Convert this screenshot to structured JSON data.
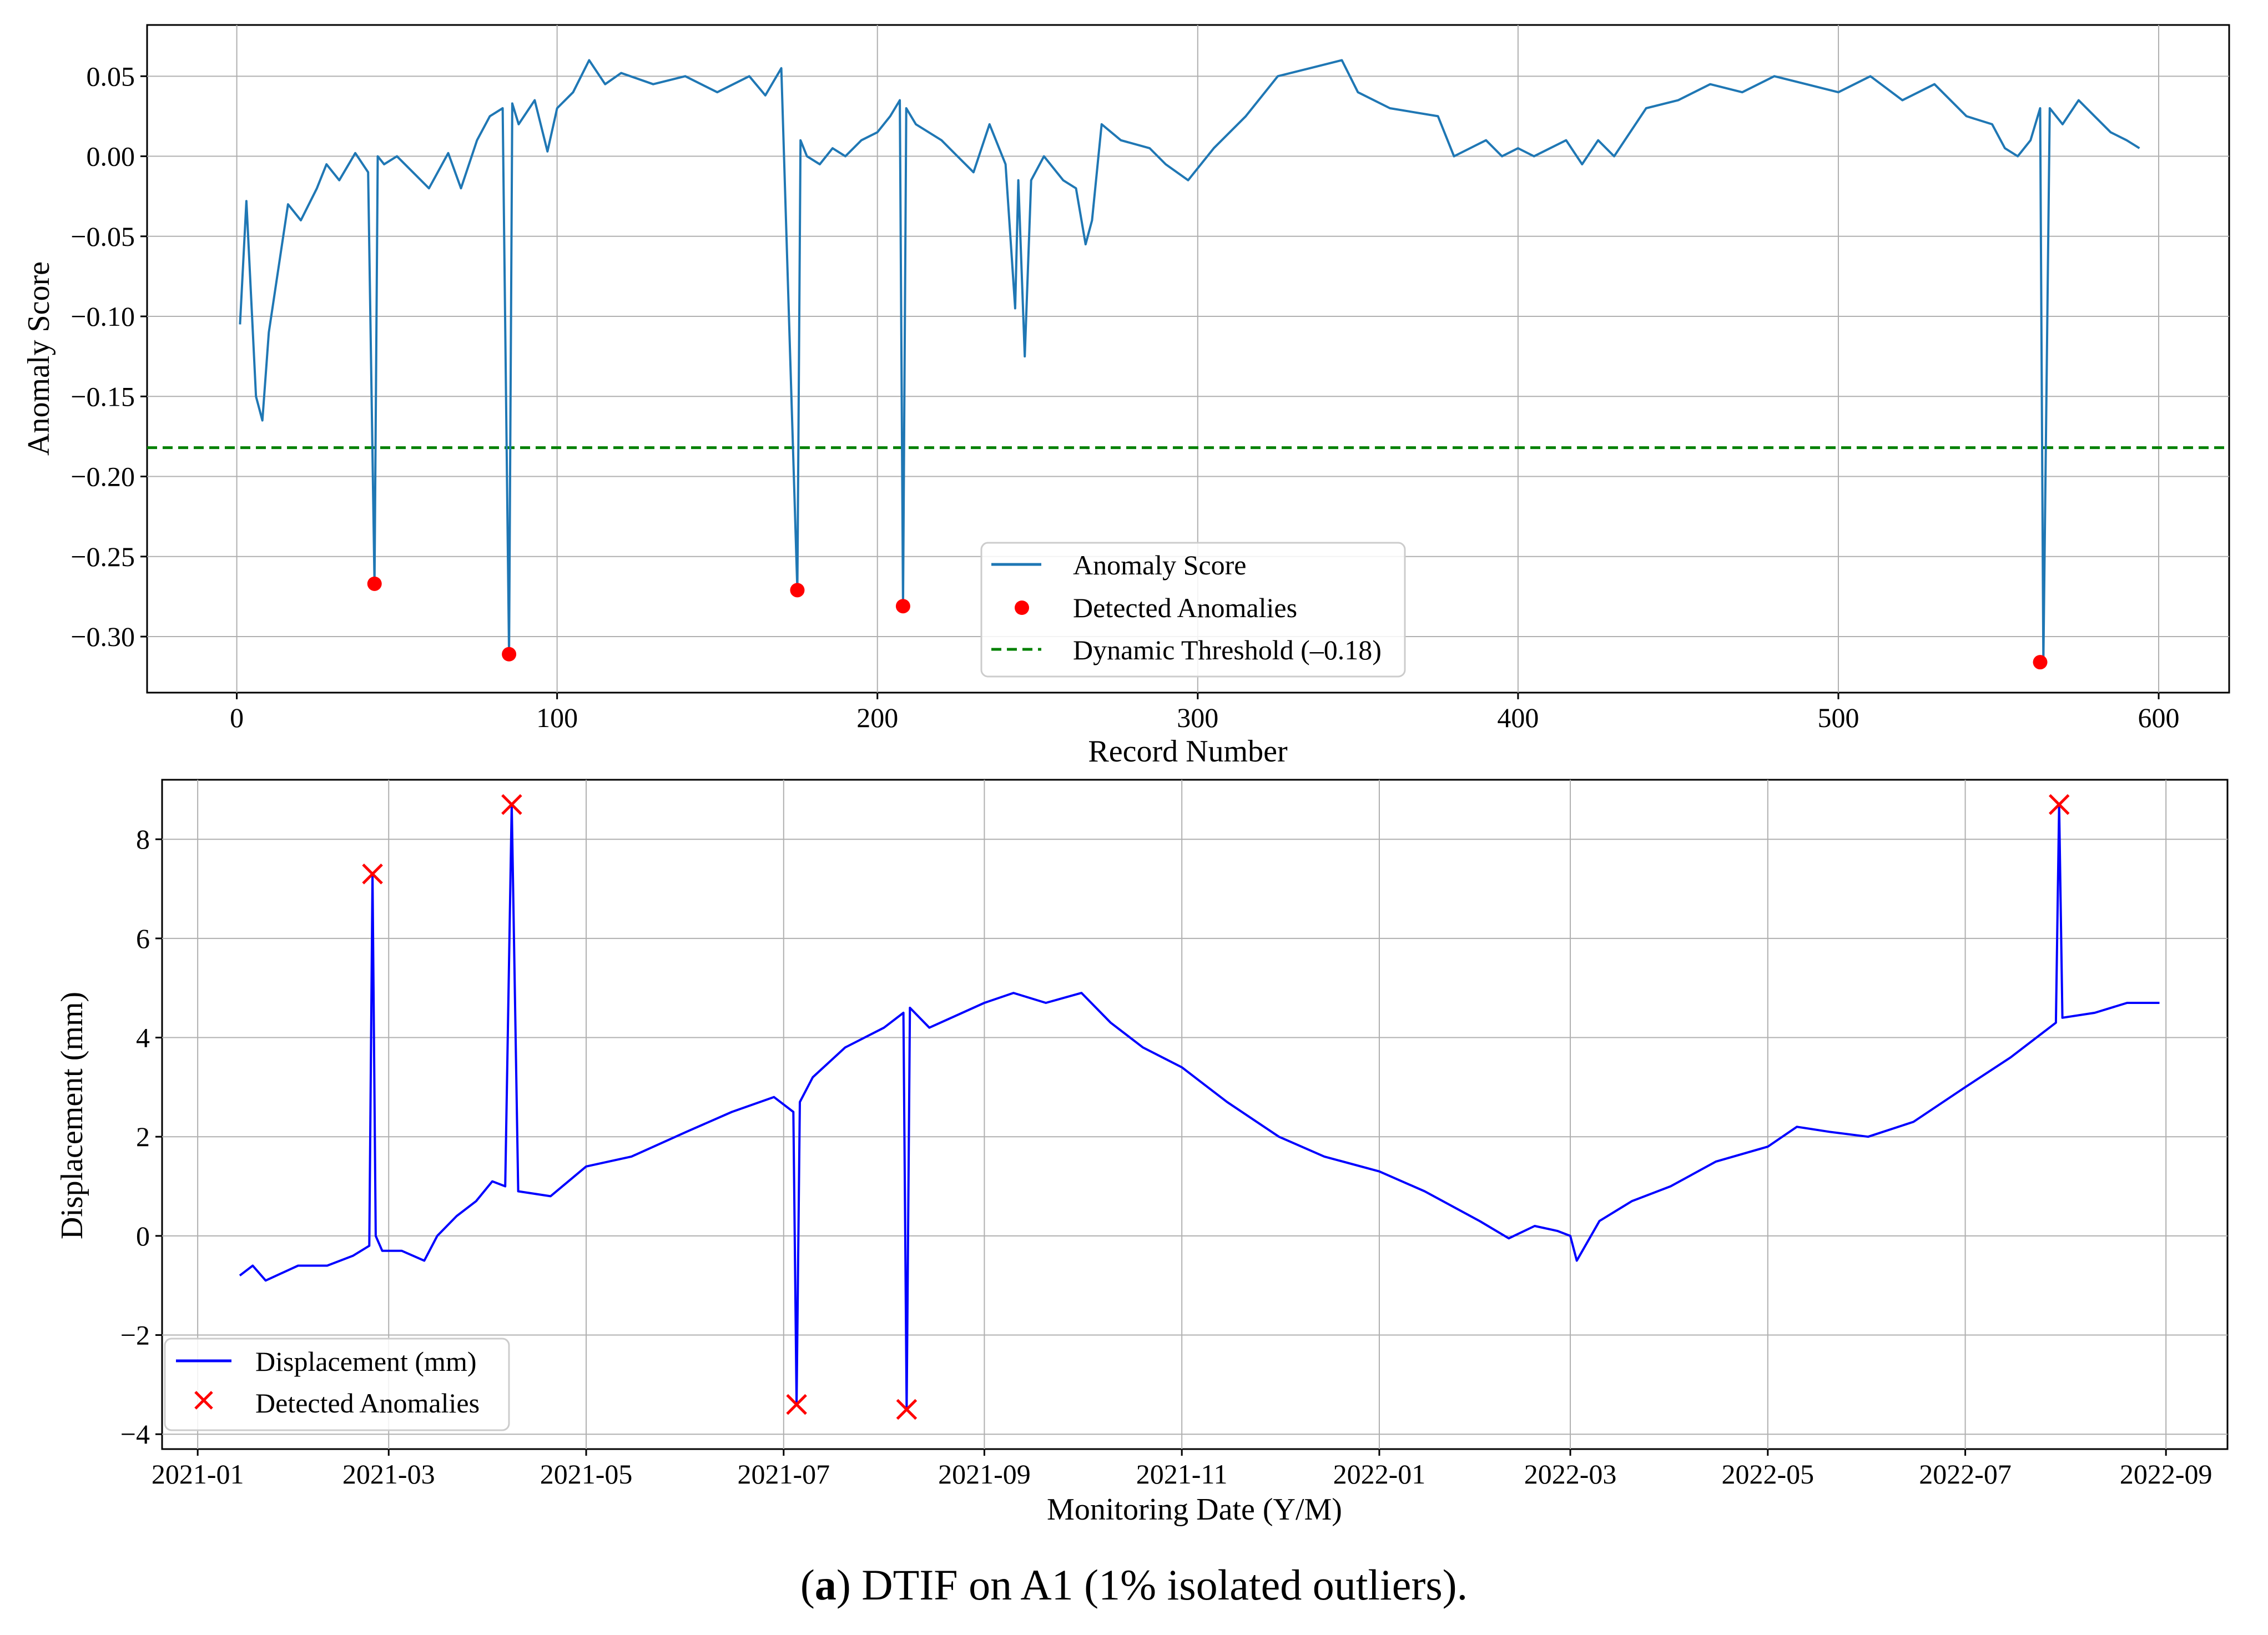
{
  "caption": {
    "prefix": "(",
    "bold": "a",
    "rest": ") DTIF on A1 (1% isolated outliers)."
  },
  "chart_data": [
    {
      "type": "line",
      "xlabel": "Record Number",
      "ylabel": "Anomaly Score",
      "xlim": [
        -28,
        622
      ],
      "ylim": [
        -0.335,
        0.082
      ],
      "xticks": [
        0,
        100,
        200,
        300,
        400,
        500,
        600
      ],
      "xtick_labels": [
        "0",
        "100",
        "200",
        "300",
        "400",
        "500",
        "600"
      ],
      "yticks": [
        0.05,
        0.0,
        -0.05,
        -0.1,
        -0.15,
        -0.2,
        -0.25,
        -0.3
      ],
      "ytick_labels": [
        "0.05",
        "0.00",
        "−0.05",
        "−0.10",
        "−0.15",
        "−0.20",
        "−0.25",
        "−0.30"
      ],
      "grid": true,
      "legend_placement": "lower-center",
      "legend": [
        "Anomaly Score",
        "Detected Anomalies",
        "Dynamic Threshold (–0.18)"
      ],
      "colors": {
        "line": "#1f77b4",
        "anomaly": "#ff0000",
        "threshold": "#008000"
      },
      "threshold": -0.182,
      "series": [
        {
          "name": "Anomaly Score",
          "x": [
            1,
            3,
            6,
            8,
            10,
            13,
            16,
            20,
            25,
            28,
            32,
            37,
            41,
            43,
            44,
            46,
            50,
            55,
            60,
            66,
            70,
            75,
            79,
            83,
            85,
            86,
            88,
            93,
            97,
            100,
            105,
            110,
            115,
            120,
            130,
            140,
            150,
            160,
            165,
            170,
            175,
            176,
            178,
            182,
            186,
            190,
            195,
            200,
            204,
            207,
            208,
            209,
            212,
            220,
            225,
            230,
            235,
            240,
            243,
            244,
            246,
            248,
            252,
            258,
            262,
            265,
            267,
            270,
            276,
            285,
            290,
            297,
            305,
            315,
            325,
            335,
            345,
            350,
            360,
            375,
            380,
            385,
            390,
            395,
            400,
            405,
            410,
            415,
            420,
            425,
            430,
            440,
            450,
            460,
            470,
            480,
            490,
            500,
            510,
            520,
            530,
            540,
            548,
            552,
            556,
            560,
            563,
            564,
            566,
            570,
            575,
            580,
            585,
            590,
            594
          ],
          "y": [
            -0.105,
            -0.028,
            -0.15,
            -0.165,
            -0.11,
            -0.07,
            -0.03,
            -0.04,
            -0.02,
            -0.005,
            -0.015,
            0.002,
            -0.01,
            -0.267,
            0.0,
            -0.005,
            0.0,
            -0.01,
            -0.02,
            0.002,
            -0.02,
            0.01,
            0.025,
            0.03,
            -0.311,
            0.033,
            0.02,
            0.035,
            0.003,
            0.03,
            0.04,
            0.06,
            0.045,
            0.052,
            0.045,
            0.05,
            0.04,
            0.05,
            0.038,
            0.055,
            -0.271,
            0.01,
            0.0,
            -0.005,
            0.005,
            0.0,
            0.01,
            0.015,
            0.025,
            0.035,
            -0.281,
            0.03,
            0.02,
            0.01,
            0.0,
            -0.01,
            0.02,
            -0.005,
            -0.095,
            -0.015,
            -0.125,
            -0.015,
            0.0,
            -0.015,
            -0.02,
            -0.055,
            -0.04,
            0.02,
            0.01,
            0.005,
            -0.005,
            -0.015,
            0.005,
            0.025,
            0.05,
            0.055,
            0.06,
            0.04,
            0.03,
            0.025,
            0.0,
            0.005,
            0.01,
            0.0,
            0.005,
            0.0,
            0.005,
            0.01,
            -0.005,
            0.01,
            0.0,
            0.03,
            0.035,
            0.045,
            0.04,
            0.05,
            0.045,
            0.04,
            0.05,
            0.035,
            0.045,
            0.025,
            0.02,
            0.005,
            0.0,
            0.01,
            0.03,
            -0.316,
            0.03,
            0.02,
            0.035,
            0.025,
            0.015,
            0.01,
            0.005
          ]
        },
        {
          "name": "Detected Anomalies",
          "x": [
            43,
            85,
            175,
            208,
            563
          ],
          "y": [
            -0.267,
            -0.311,
            -0.271,
            -0.281,
            -0.316
          ]
        }
      ]
    },
    {
      "type": "line",
      "xlabel": "Monitoring Date (Y/M)",
      "ylabel": "Displacement (mm)",
      "xlim": [
        "2020-12-21",
        "2022-09-20"
      ],
      "ylim": [
        -4.3,
        9.2
      ],
      "xticks": [
        "2021-01-01",
        "2021-03-01",
        "2021-05-01",
        "2021-07-01",
        "2021-09-01",
        "2021-11-01",
        "2022-01-01",
        "2022-03-01",
        "2022-05-01",
        "2022-07-01",
        "2022-09-01"
      ],
      "xtick_labels": [
        "2021-01",
        "2021-03",
        "2021-05",
        "2021-07",
        "2021-09",
        "2021-11",
        "2022-01",
        "2022-03",
        "2022-05",
        "2022-07",
        "2022-09"
      ],
      "yticks": [
        8,
        6,
        4,
        2,
        0,
        -2,
        -4
      ],
      "ytick_labels": [
        "8",
        "6",
        "4",
        "2",
        "0",
        "−2",
        "−4"
      ],
      "grid": true,
      "legend_placement": "lower-left",
      "legend": [
        "Displacement (mm)",
        "Detected Anomalies"
      ],
      "colors": {
        "line": "#0000ff",
        "anomaly": "#ff0000"
      },
      "series": [
        {
          "name": "Displacement (mm)",
          "x": [
            "2021-01-14",
            "2021-01-18",
            "2021-01-22",
            "2021-02-01",
            "2021-02-10",
            "2021-02-18",
            "2021-02-23",
            "2021-02-24",
            "2021-02-25",
            "2021-02-27",
            "2021-03-05",
            "2021-03-12",
            "2021-03-16",
            "2021-03-22",
            "2021-03-28",
            "2021-04-02",
            "2021-04-06",
            "2021-04-08",
            "2021-04-10",
            "2021-04-20",
            "2021-05-01",
            "2021-05-15",
            "2021-06-01",
            "2021-06-15",
            "2021-06-28",
            "2021-07-04",
            "2021-07-05",
            "2021-07-06",
            "2021-07-10",
            "2021-07-20",
            "2021-08-01",
            "2021-08-07",
            "2021-08-08",
            "2021-08-09",
            "2021-08-15",
            "2021-09-01",
            "2021-09-10",
            "2021-09-20",
            "2021-10-01",
            "2021-10-10",
            "2021-10-20",
            "2021-11-01",
            "2021-11-15",
            "2021-12-01",
            "2021-12-15",
            "2022-01-01",
            "2022-01-15",
            "2022-02-01",
            "2022-02-10",
            "2022-02-18",
            "2022-02-25",
            "2022-03-01",
            "2022-03-03",
            "2022-03-10",
            "2022-03-20",
            "2022-04-01",
            "2022-04-15",
            "2022-05-01",
            "2022-05-10",
            "2022-05-20",
            "2022-06-01",
            "2022-06-15",
            "2022-07-01",
            "2022-07-15",
            "2022-07-29",
            "2022-07-30",
            "2022-07-31",
            "2022-08-10",
            "2022-08-20",
            "2022-08-30"
          ],
          "y": [
            -0.8,
            -0.6,
            -0.9,
            -0.6,
            -0.6,
            -0.4,
            -0.2,
            7.3,
            0.0,
            -0.3,
            -0.3,
            -0.5,
            0.0,
            0.4,
            0.7,
            1.1,
            1.0,
            8.7,
            0.9,
            0.8,
            1.4,
            1.6,
            2.1,
            2.5,
            2.8,
            2.5,
            -3.4,
            2.7,
            3.2,
            3.8,
            4.2,
            4.5,
            -3.5,
            4.6,
            4.2,
            4.7,
            4.9,
            4.7,
            4.9,
            4.3,
            3.8,
            3.4,
            2.7,
            2.0,
            1.6,
            1.3,
            0.9,
            0.3,
            -0.05,
            0.2,
            0.1,
            0.0,
            -0.5,
            0.3,
            0.7,
            1.0,
            1.5,
            1.8,
            2.2,
            2.1,
            2.0,
            2.3,
            3.0,
            3.6,
            4.3,
            8.7,
            4.4,
            4.5,
            4.7,
            4.7
          ]
        },
        {
          "name": "Detected Anomalies",
          "x": [
            "2021-02-24",
            "2021-04-08",
            "2021-07-05",
            "2021-08-08",
            "2022-07-30"
          ],
          "y": [
            7.3,
            8.7,
            -3.4,
            -3.5,
            8.7
          ]
        }
      ]
    }
  ]
}
